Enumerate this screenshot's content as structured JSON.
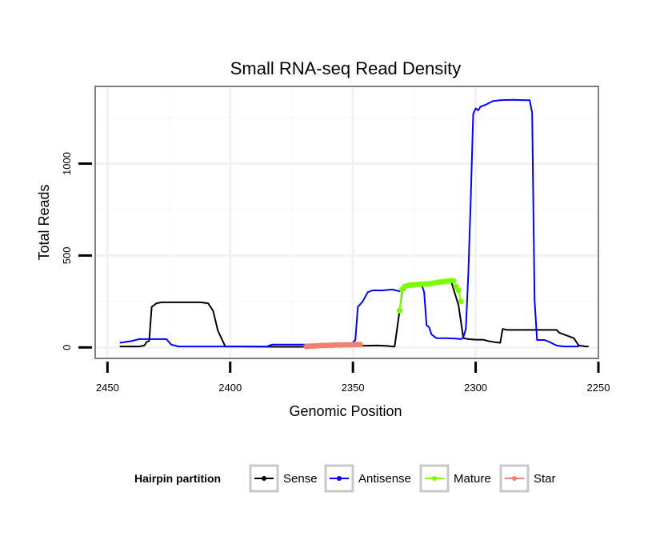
{
  "chart_data": {
    "type": "line",
    "title": "Small RNA-seq Read Density",
    "xlabel": "Genomic Position",
    "ylabel": "Total Reads",
    "x_reversed": true,
    "xlim": [
      2455,
      2250
    ],
    "ylim": [
      -60,
      1420
    ],
    "x_ticks": [
      2450,
      2400,
      2350,
      2300,
      2250
    ],
    "y_ticks": [
      0,
      500,
      1000
    ],
    "grid": true,
    "legend": {
      "title": "Hairpin partition",
      "position": "bottom",
      "entries": [
        "Sense",
        "Antisense",
        "Mature",
        "Star"
      ]
    },
    "series": [
      {
        "name": "Sense",
        "color": "#000000",
        "points": [
          [
            2445,
            5
          ],
          [
            2437,
            5
          ],
          [
            2435,
            10
          ],
          [
            2434,
            30
          ],
          [
            2433,
            35
          ],
          [
            2432,
            220
          ],
          [
            2430,
            240
          ],
          [
            2428,
            245
          ],
          [
            2420,
            245
          ],
          [
            2412,
            245
          ],
          [
            2409,
            240
          ],
          [
            2407,
            200
          ],
          [
            2405,
            90
          ],
          [
            2402,
            5
          ],
          [
            2395,
            5
          ],
          [
            2380,
            3
          ],
          [
            2370,
            3
          ],
          [
            2360,
            5
          ],
          [
            2350,
            8
          ],
          [
            2340,
            10
          ],
          [
            2336,
            8
          ],
          [
            2334,
            5
          ],
          [
            2333,
            5
          ],
          [
            2331,
            200
          ],
          [
            2330,
            300
          ],
          [
            2328,
            330
          ],
          [
            2325,
            345
          ],
          [
            2320,
            350
          ],
          [
            2315,
            355
          ],
          [
            2310,
            360
          ],
          [
            2307,
            230
          ],
          [
            2306,
            140
          ],
          [
            2305,
            50
          ],
          [
            2303,
            45
          ],
          [
            2300,
            42
          ],
          [
            2297,
            42
          ],
          [
            2295,
            35
          ],
          [
            2292,
            28
          ],
          [
            2290,
            25
          ],
          [
            2289,
            100
          ],
          [
            2287,
            95
          ],
          [
            2285,
            95
          ],
          [
            2276,
            95
          ],
          [
            2270,
            95
          ],
          [
            2267,
            95
          ],
          [
            2266,
            80
          ],
          [
            2262,
            60
          ],
          [
            2260,
            50
          ],
          [
            2258,
            10
          ],
          [
            2255,
            5
          ],
          [
            2254,
            5
          ]
        ]
      },
      {
        "name": "Antisense",
        "color": "#0000ff",
        "points": [
          [
            2445,
            25
          ],
          [
            2440,
            35
          ],
          [
            2437,
            45
          ],
          [
            2435,
            45
          ],
          [
            2426,
            45
          ],
          [
            2425,
            30
          ],
          [
            2424,
            15
          ],
          [
            2421,
            5
          ],
          [
            2410,
            5
          ],
          [
            2400,
            5
          ],
          [
            2385,
            5
          ],
          [
            2383,
            15
          ],
          [
            2378,
            15
          ],
          [
            2370,
            15
          ],
          [
            2360,
            15
          ],
          [
            2351,
            15
          ],
          [
            2349,
            40
          ],
          [
            2348,
            220
          ],
          [
            2346,
            250
          ],
          [
            2344,
            300
          ],
          [
            2342,
            310
          ],
          [
            2338,
            310
          ],
          [
            2334,
            315
          ],
          [
            2331,
            305
          ],
          [
            2328,
            330
          ],
          [
            2325,
            340
          ],
          [
            2322,
            340
          ],
          [
            2321,
            300
          ],
          [
            2320,
            120
          ],
          [
            2319,
            110
          ],
          [
            2318,
            70
          ],
          [
            2316,
            50
          ],
          [
            2312,
            50
          ],
          [
            2308,
            48
          ],
          [
            2306,
            45
          ],
          [
            2305,
            55
          ],
          [
            2304,
            100
          ],
          [
            2303,
            400
          ],
          [
            2302,
            800
          ],
          [
            2301,
            1270
          ],
          [
            2300,
            1300
          ],
          [
            2299,
            1290
          ],
          [
            2298,
            1310
          ],
          [
            2296,
            1320
          ],
          [
            2293,
            1340
          ],
          [
            2290,
            1345
          ],
          [
            2285,
            1347
          ],
          [
            2280,
            1345
          ],
          [
            2278,
            1345
          ],
          [
            2277,
            1275
          ],
          [
            2276,
            260
          ],
          [
            2275,
            40
          ],
          [
            2272,
            40
          ],
          [
            2270,
            30
          ],
          [
            2267,
            10
          ],
          [
            2264,
            5
          ],
          [
            2258,
            5
          ]
        ]
      },
      {
        "name": "Mature",
        "color": "#7cfc00",
        "points": [
          [
            2331,
            200
          ],
          [
            2331,
            200
          ],
          [
            2330,
            315
          ],
          [
            2329,
            330
          ],
          [
            2328,
            335
          ],
          [
            2327,
            338
          ],
          [
            2326,
            340
          ],
          [
            2325,
            340
          ],
          [
            2324,
            342
          ],
          [
            2323,
            343
          ],
          [
            2322,
            344
          ],
          [
            2321,
            345
          ],
          [
            2320,
            345
          ],
          [
            2319,
            346
          ],
          [
            2318,
            347
          ],
          [
            2317,
            350
          ],
          [
            2316,
            353
          ],
          [
            2315,
            355
          ],
          [
            2314,
            356
          ],
          [
            2313,
            358
          ],
          [
            2312,
            360
          ],
          [
            2311,
            362
          ],
          [
            2310,
            364
          ],
          [
            2309,
            362
          ],
          [
            2308,
            330
          ],
          [
            2307,
            310
          ],
          [
            2306,
            250
          ]
        ]
      },
      {
        "name": "Star",
        "color": "#f08070",
        "points": [
          [
            2369,
            5
          ],
          [
            2368,
            6
          ],
          [
            2367,
            7
          ],
          [
            2366,
            8
          ],
          [
            2365,
            8
          ],
          [
            2364,
            9
          ],
          [
            2363,
            10
          ],
          [
            2362,
            10
          ],
          [
            2361,
            11
          ],
          [
            2360,
            11
          ],
          [
            2359,
            12
          ],
          [
            2358,
            12
          ],
          [
            2357,
            13
          ],
          [
            2356,
            13
          ],
          [
            2355,
            13
          ],
          [
            2354,
            14
          ],
          [
            2353,
            14
          ],
          [
            2352,
            14
          ],
          [
            2351,
            14
          ],
          [
            2350,
            15
          ],
          [
            2349,
            15
          ],
          [
            2348,
            15
          ],
          [
            2347,
            15
          ]
        ]
      }
    ]
  }
}
